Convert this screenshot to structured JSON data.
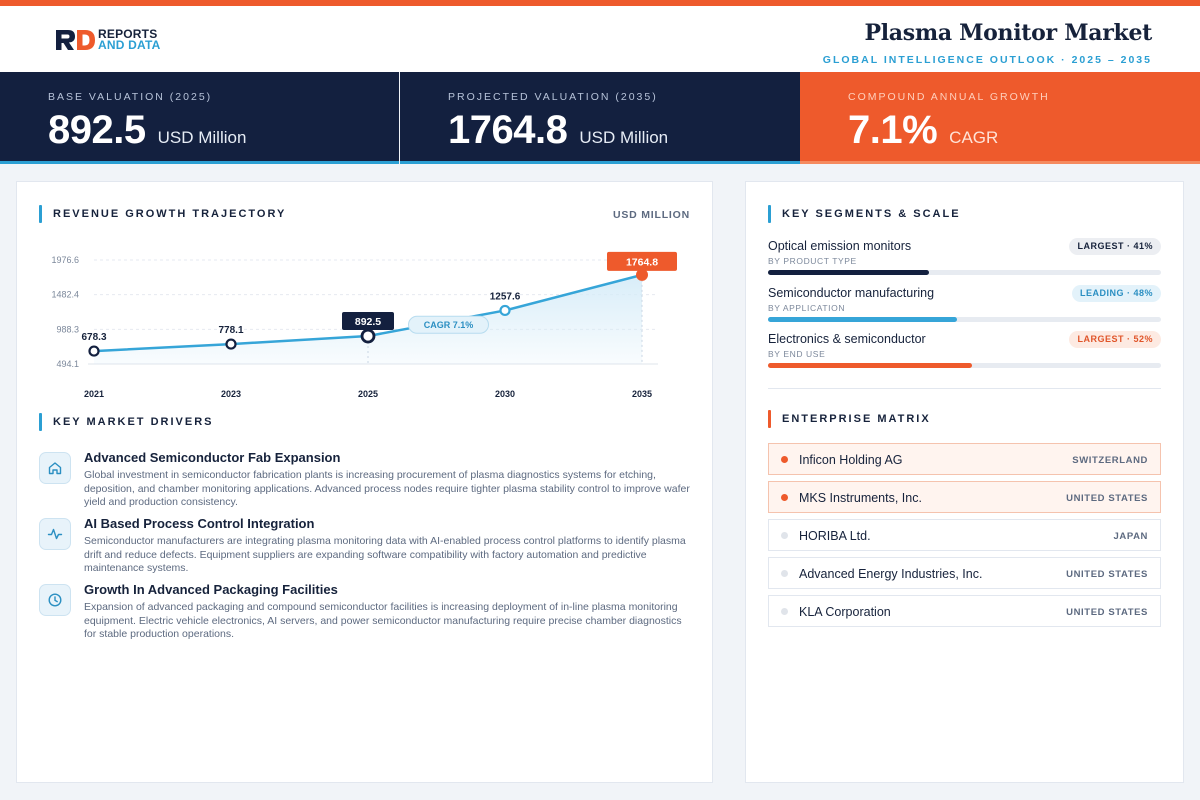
{
  "brand": {
    "line1": "REPORTS",
    "line2": "AND DATA"
  },
  "header": {
    "title": "Plasma Monitor Market",
    "subtitle": "GLOBAL INTELLIGENCE OUTLOOK  ·  2025 – 2035"
  },
  "kpis": [
    {
      "label": "BASE VALUATION (2025)",
      "value": "892.5",
      "unit": "USD Million"
    },
    {
      "label": "PROJECTED VALUATION (2035)",
      "value": "1764.8",
      "unit": "USD Million"
    },
    {
      "label": "COMPOUND ANNUAL GROWTH",
      "value": "7.1%",
      "unit": "CAGR"
    }
  ],
  "revenue": {
    "title": "REVENUE GROWTH TRAJECTORY",
    "unit": "USD MILLION",
    "cagr_label": "CAGR 7.1%"
  },
  "chart_data": {
    "type": "area",
    "categories": [
      "2021",
      "2023",
      "2025",
      "2030",
      "2035"
    ],
    "values": [
      678.3,
      778.1,
      892.5,
      1257.6,
      1764.8
    ],
    "value_labels": [
      "678.3",
      "778.1",
      "892.5",
      "1257.6",
      "1764.8"
    ],
    "yticks": [
      "1976.6",
      "1482.4",
      "988.3",
      "494.1"
    ],
    "ytick_values": [
      1976.6,
      1482.4,
      988.3,
      494.1
    ],
    "ylim": [
      494.1,
      1976.6
    ],
    "highlight": {
      "base_index": 2,
      "end_index": 4
    },
    "colors": {
      "line": "#36a5d8",
      "area": "#d6ecf8",
      "base": "#13203f",
      "end": "#ee5a2c"
    },
    "grid": true
  },
  "drivers": {
    "title": "KEY MARKET DRIVERS",
    "items": [
      {
        "icon": "home-icon",
        "title": "Advanced Semiconductor Fab Expansion",
        "desc": "Global investment in semiconductor fabrication plants is increasing procurement of plasma diagnostics systems for etching, deposition, and chamber monitoring applications. Advanced process nodes require tighter plasma stability control to improve wafer yield and production consistency."
      },
      {
        "icon": "activity-icon",
        "title": "AI Based Process Control Integration",
        "desc": "Semiconductor manufacturers are integrating plasma monitoring data with AI-enabled process control platforms to identify plasma drift and reduce defects. Equipment suppliers are expanding software compatibility with factory automation and predictive maintenance systems."
      },
      {
        "icon": "clock-icon",
        "title": "Growth In Advanced Packaging Facilities",
        "desc": "Expansion of advanced packaging and compound semiconductor facilities is increasing deployment of in-line plasma monitoring equipment. Electric vehicle electronics, AI servers, and power semiconductor manufacturing require precise chamber diagnostics for stable production operations."
      }
    ]
  },
  "segments": {
    "title": "KEY SEGMENTS & SCALE",
    "items": [
      {
        "name": "Optical emission monitors",
        "by": "BY PRODUCT TYPE",
        "badge": "LARGEST · 41%",
        "share": 41,
        "color": "#13203f",
        "badge_bg": "#eceef2",
        "badge_fg": "#16223b"
      },
      {
        "name": "Semiconductor manufacturing",
        "by": "BY APPLICATION",
        "badge": "LEADING · 48%",
        "share": 48,
        "color": "#36a5d8",
        "badge_bg": "#e3f2fa",
        "badge_fg": "#2b8fc2"
      },
      {
        "name": "Electronics & semiconductor",
        "by": "BY END USE",
        "badge": "LARGEST · 52%",
        "share": 52,
        "color": "#ee5a2c",
        "badge_bg": "#fdeae2",
        "badge_fg": "#e0552a"
      }
    ]
  },
  "enterprise": {
    "title": "ENTERPRISE MATRIX",
    "items": [
      {
        "name": "Inficon Holding AG",
        "country": "SWITZERLAND",
        "highlight": true
      },
      {
        "name": "MKS Instruments, Inc.",
        "country": "UNITED STATES",
        "highlight": true
      },
      {
        "name": "HORIBA Ltd.",
        "country": "JAPAN",
        "highlight": false
      },
      {
        "name": "Advanced Energy Industries, Inc.",
        "country": "UNITED STATES",
        "highlight": false
      },
      {
        "name": "KLA Corporation",
        "country": "UNITED STATES",
        "highlight": false
      }
    ]
  }
}
